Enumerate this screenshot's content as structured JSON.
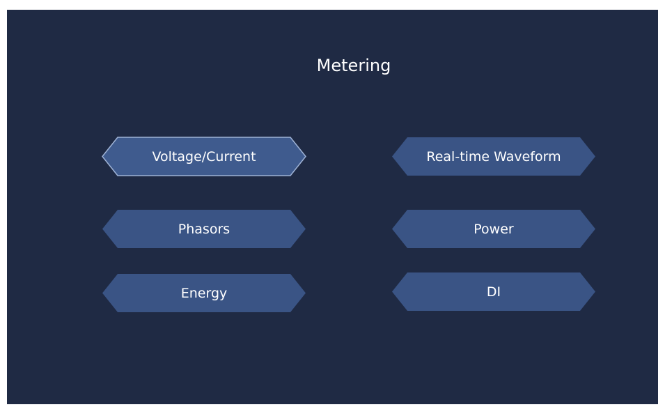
{
  "title": "Metering",
  "buttons": [
    {
      "label": "Voltage/Current",
      "selected": true
    },
    {
      "label": "Real-time Waveform",
      "selected": false
    },
    {
      "label": "Phasors",
      "selected": false
    },
    {
      "label": "Power",
      "selected": false
    },
    {
      "label": "Energy",
      "selected": false
    },
    {
      "label": "DI",
      "selected": false
    }
  ]
}
